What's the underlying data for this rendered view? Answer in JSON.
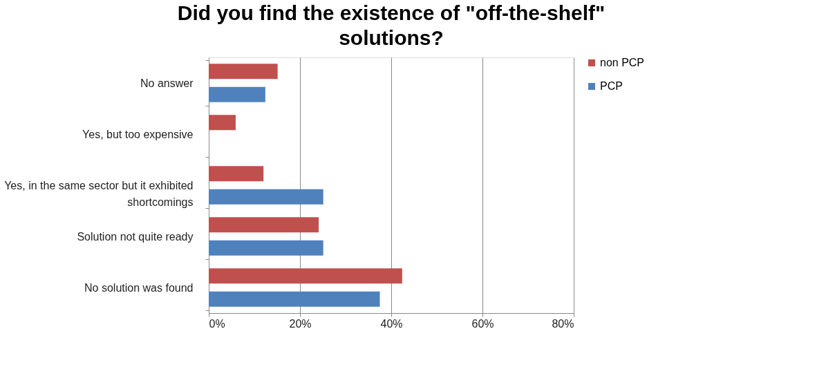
{
  "chart_data": {
    "type": "bar",
    "orientation": "horizontal",
    "title": "Did you find the existence of \"off-the-shelf\" solutions?",
    "categories": [
      "No answer",
      "Yes, but too expensive",
      "Yes, in the same sector but it exhibited shortcomings",
      "Solution not quite ready",
      "No solution was found"
    ],
    "series": [
      {
        "name": "non PCP",
        "color": "#c0504d",
        "values": [
          15.1,
          5.9,
          12.0,
          24.1,
          42.4
        ]
      },
      {
        "name": "PCP",
        "color": "#4f81bd",
        "values": [
          12.4,
          0,
          25.1,
          25.1,
          37.5
        ]
      }
    ],
    "xlim": [
      0,
      80
    ],
    "xticks": [
      {
        "value": 0,
        "label": "0%"
      },
      {
        "value": 20,
        "label": "20%"
      },
      {
        "value": 40,
        "label": "40%"
      },
      {
        "value": 60,
        "label": "60%"
      },
      {
        "value": 80,
        "label": "80%"
      }
    ],
    "grid": "x",
    "legend": "right"
  }
}
